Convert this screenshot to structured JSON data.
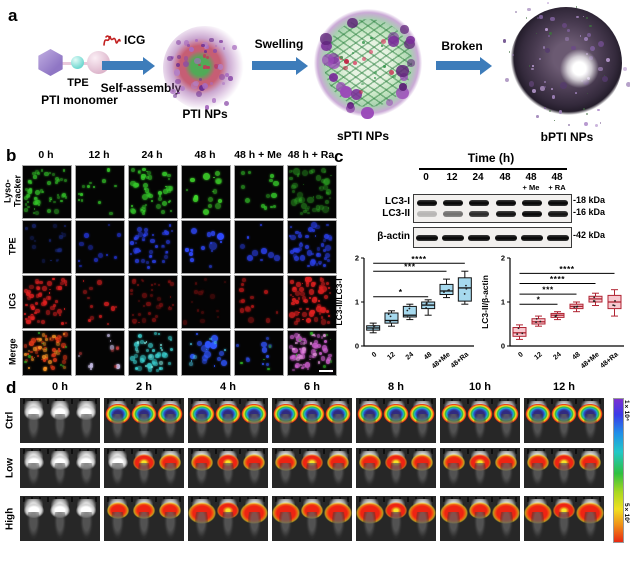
{
  "panel_a": {
    "label": "a",
    "tpe_label": "TPE",
    "monomer_label": "PTI monomer",
    "icg_label": "ICG",
    "self_assembly_label": "Self-assembly",
    "pti_nps_label": "PTI NPs",
    "swelling_label": "Swelling",
    "spti_nps_label": "sPTI NPs",
    "broken_label": "Broken",
    "bpti_nps_label": "bPTI NPs",
    "arrow_color": "#3d7cba"
  },
  "panel_b": {
    "label": "b",
    "col_headers": [
      "0 h",
      "12 h",
      "24 h",
      "48 h",
      "48 h + Me",
      "48 h + Ra"
    ],
    "row_labels": [
      "Lyso-Tracker",
      "TPE",
      "ICG",
      "Merge"
    ],
    "cells": [
      [
        [
          {
            "c": "#35c82a",
            "n": 55,
            "r": 5,
            "o": 0.8
          }
        ],
        [
          {
            "c": "#35c82a",
            "n": 13,
            "r": 5,
            "o": 0.95
          }
        ],
        [
          {
            "c": "#35c82a",
            "n": 48,
            "r": 6,
            "o": 0.95
          }
        ],
        [
          {
            "c": "#3ed32a",
            "n": 16,
            "r": 7,
            "o": 1
          }
        ],
        [
          {
            "c": "#35c82a",
            "n": 13,
            "r": 6,
            "o": 0.9
          }
        ],
        [
          {
            "c": "#2ea824",
            "n": 50,
            "r": 7,
            "o": 0.6
          }
        ]
      ],
      [
        [
          {
            "c": "#1a2a80",
            "n": 18,
            "r": 4,
            "o": 0.7
          }
        ],
        [
          {
            "c": "#2334d6",
            "n": 11,
            "r": 5,
            "o": 0.9
          }
        ],
        [
          {
            "c": "#2a3fe8",
            "n": 40,
            "r": 5,
            "o": 0.9
          }
        ],
        [
          {
            "c": "#2f49ff",
            "n": 15,
            "r": 8,
            "o": 1
          }
        ],
        [
          {
            "c": "#2a3fe8",
            "n": 9,
            "r": 6,
            "o": 0.95
          }
        ],
        [
          {
            "c": "#2a3fe8",
            "n": 48,
            "r": 6,
            "o": 0.9
          }
        ]
      ],
      [
        [
          {
            "c": "#e02020",
            "n": 60,
            "r": 5,
            "o": 0.95
          }
        ],
        [
          {
            "c": "#d81f1f",
            "n": 13,
            "r": 5,
            "o": 0.9
          }
        ],
        [
          {
            "c": "#8a1212",
            "n": 35,
            "r": 5,
            "o": 0.8
          }
        ],
        [
          {
            "c": "#6a0e0e",
            "n": 14,
            "r": 5,
            "o": 0.7
          }
        ],
        [
          {
            "c": "#c01818",
            "n": 14,
            "r": 6,
            "o": 0.85
          }
        ],
        [
          {
            "c": "#e02020",
            "n": 65,
            "r": 6,
            "o": 0.95
          }
        ]
      ],
      [
        [
          {
            "c": "#e03818",
            "n": 40,
            "r": 5,
            "o": 0.95
          },
          {
            "c": "#ff9926",
            "n": 28,
            "r": 4,
            "o": 0.9
          },
          {
            "c": "#35c82a",
            "n": 8,
            "r": 3,
            "o": 0.8
          }
        ],
        [
          {
            "c": "#c9bfe8",
            "n": 9,
            "r": 5,
            "o": 0.95
          },
          {
            "c": "#d84040",
            "n": 5,
            "r": 4,
            "o": 0.8
          }
        ],
        [
          {
            "c": "#3ad2d2",
            "n": 42,
            "r": 6,
            "o": 0.9
          },
          {
            "c": "#7fe8e0",
            "n": 10,
            "r": 4,
            "o": 0.9
          }
        ],
        [
          {
            "c": "#2f55ff",
            "n": 14,
            "r": 8,
            "o": 1
          },
          {
            "c": "#49c8e8",
            "n": 8,
            "r": 4,
            "o": 0.9
          }
        ],
        [
          {
            "c": "#3050f0",
            "n": 10,
            "r": 6,
            "o": 0.95
          },
          {
            "c": "#35c82a",
            "n": 4,
            "r": 3,
            "o": 0.9
          }
        ],
        [
          {
            "c": "#cf5fd0",
            "n": 50,
            "r": 6,
            "o": 0.9
          },
          {
            "c": "#e89ae0",
            "n": 15,
            "r": 4,
            "o": 0.9
          },
          {
            "c": "#35c82a",
            "n": 8,
            "r": 3,
            "o": 0.8
          }
        ]
      ]
    ],
    "scalebar_cell": [
      3,
      5
    ]
  },
  "panel_c": {
    "label": "c",
    "blot": {
      "time_header": "Time  (h)",
      "lanes": [
        "0",
        "12",
        "24",
        "48",
        "48",
        "48"
      ],
      "lane_sublabels": [
        "",
        "",
        "",
        "",
        "+ Me",
        "+ RA"
      ],
      "rows": [
        {
          "label": "LC3-I",
          "kda": "-18 kDa",
          "intensities": [
            1,
            1,
            1,
            1,
            1,
            1
          ]
        },
        {
          "label": "LC3-II",
          "kda": "-16 kDa",
          "intensities": [
            0.25,
            0.55,
            0.85,
            0.95,
            1,
            0.95
          ]
        }
      ],
      "actin": {
        "label": "β-actin",
        "kda": "-42 kDa",
        "intensities": [
          1,
          1,
          1,
          1,
          1,
          1
        ]
      }
    }
  },
  "chart_data": [
    {
      "type": "box",
      "ylabel": "LC3-II/LC3-I",
      "ylim": [
        0,
        2
      ],
      "yticks": [
        0,
        1,
        2
      ],
      "categories": [
        "0",
        "12",
        "24",
        "48",
        "48+Me",
        "48+Ra"
      ],
      "box_fill": "#a6d9ee",
      "box_stroke": "#111111",
      "boxes": [
        {
          "low": 0.3,
          "q1": 0.36,
          "median": 0.41,
          "q3": 0.46,
          "high": 0.52
        },
        {
          "low": 0.45,
          "q1": 0.52,
          "median": 0.58,
          "q3": 0.75,
          "high": 0.8
        },
        {
          "low": 0.6,
          "q1": 0.66,
          "median": 0.7,
          "q3": 0.9,
          "high": 0.95
        },
        {
          "low": 0.7,
          "q1": 0.85,
          "median": 0.93,
          "q3": 1.0,
          "high": 1.05
        },
        {
          "low": 1.1,
          "q1": 1.17,
          "median": 1.25,
          "q3": 1.4,
          "high": 1.52
        },
        {
          "low": 0.95,
          "q1": 1.02,
          "median": 1.32,
          "q3": 1.55,
          "high": 1.7
        }
      ],
      "significance": [
        {
          "from": 0,
          "to": 3,
          "y": 1.12,
          "label": "*"
        },
        {
          "from": 0,
          "to": 4,
          "y": 1.7,
          "label": "***"
        },
        {
          "from": 0,
          "to": 5,
          "y": 1.88,
          "label": "****"
        }
      ]
    },
    {
      "type": "box",
      "ylabel": "LC3-II/β-actin",
      "ylim": [
        0,
        2
      ],
      "yticks": [
        0,
        1,
        2
      ],
      "categories": [
        "0",
        "12",
        "24",
        "48",
        "48+Me",
        "48+Ra"
      ],
      "box_fill": "#f7c9d0",
      "box_stroke": "#b02433",
      "boxes": [
        {
          "low": 0.15,
          "q1": 0.22,
          "median": 0.3,
          "q3": 0.42,
          "high": 0.48
        },
        {
          "low": 0.45,
          "q1": 0.5,
          "median": 0.55,
          "q3": 0.62,
          "high": 0.68
        },
        {
          "low": 0.6,
          "q1": 0.65,
          "median": 0.7,
          "q3": 0.74,
          "high": 0.78
        },
        {
          "low": 0.78,
          "q1": 0.85,
          "median": 0.9,
          "q3": 0.95,
          "high": 1.0
        },
        {
          "low": 0.92,
          "q1": 1.0,
          "median": 1.07,
          "q3": 1.13,
          "high": 1.2
        },
        {
          "low": 0.68,
          "q1": 0.85,
          "median": 1.0,
          "q3": 1.15,
          "high": 1.28
        }
      ],
      "significance": [
        {
          "from": 0,
          "to": 2,
          "y": 0.95,
          "label": "*"
        },
        {
          "from": 0,
          "to": 3,
          "y": 1.18,
          "label": "***"
        },
        {
          "from": 0,
          "to": 4,
          "y": 1.42,
          "label": "****"
        },
        {
          "from": 0,
          "to": 5,
          "y": 1.65,
          "label": "****"
        }
      ]
    }
  ],
  "panel_d": {
    "label": "d",
    "col_headers": [
      "0 h",
      "2 h",
      "4 h",
      "6 h",
      "8 h",
      "10 h",
      "12 h"
    ],
    "row_labels": [
      "Ctrl",
      "Low",
      "High"
    ],
    "heat": [
      [
        [
          "white",
          "white",
          "white"
        ],
        [
          "rainbow",
          "rainbow",
          "rainbow"
        ],
        [
          "rainbow",
          "rainbow",
          "rainbow"
        ],
        [
          "rainbow",
          "rainbow",
          "rainbow"
        ],
        [
          "rainbow",
          "rainbow",
          "rainbow"
        ],
        [
          "rainbow",
          "rainbow",
          "rainbow"
        ],
        [
          "rainbow",
          "rainbow",
          "rainbow"
        ]
      ],
      [
        [
          "white",
          "white",
          "white"
        ],
        [
          "white",
          "red-yellow",
          "red"
        ],
        [
          "red",
          "red-yellow",
          "red"
        ],
        [
          "red",
          "red-yellow",
          "red"
        ],
        [
          "red",
          "red-yellow",
          "red"
        ],
        [
          "red",
          "red-yellow",
          "red"
        ],
        [
          "red",
          "red-yellow",
          "red"
        ]
      ],
      [
        [
          "white",
          "white",
          "white"
        ],
        [
          "red",
          "red",
          "red"
        ],
        [
          "red-big",
          "red-yellow",
          "red-big"
        ],
        [
          "red-big",
          "red",
          "red-big"
        ],
        [
          "red-big",
          "red-yellow",
          "red-big"
        ],
        [
          "red-big",
          "red",
          "red-big"
        ],
        [
          "red-big",
          "red-yellow",
          "red-big"
        ]
      ]
    ],
    "colorbar": {
      "top_label": "1×10⁴",
      "bottom_label": "5×10²"
    }
  }
}
